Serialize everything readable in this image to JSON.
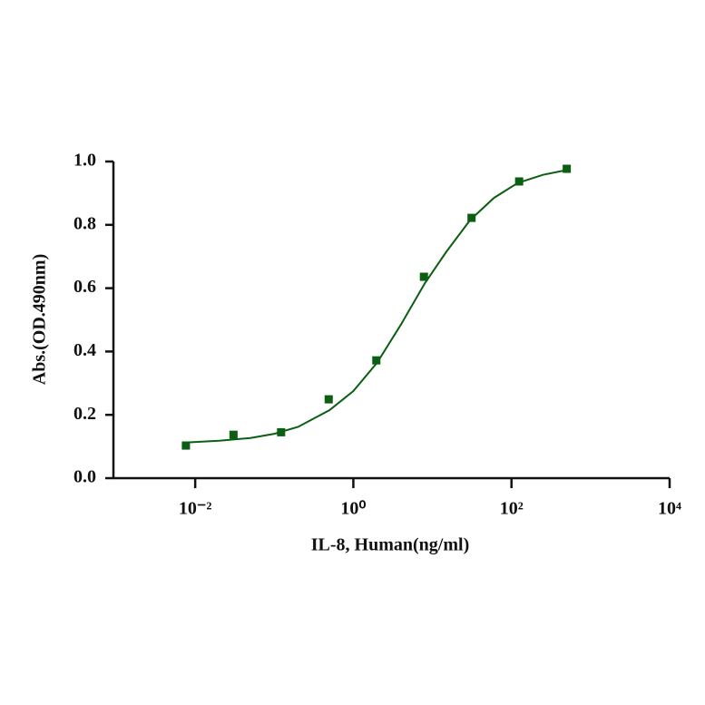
{
  "chart_data": {
    "type": "scatter",
    "xlabel": "IL-8, Human(ng/ml)",
    "ylabel": "Abs.(OD.490nm)",
    "xscale": "log",
    "xlim": [
      0.001,
      10000
    ],
    "xticks": [
      {
        "value": 0.01,
        "label": "10⁻²"
      },
      {
        "value": 1,
        "label": "10⁰"
      },
      {
        "value": 100,
        "label": "10²"
      },
      {
        "value": 10000,
        "label": "10⁴"
      }
    ],
    "ylim": [
      0,
      1
    ],
    "yticks": [
      {
        "value": 0,
        "label": "0.0"
      },
      0.2,
      0.4,
      0.6,
      0.8,
      {
        "value": 1,
        "label": "1.0"
      }
    ],
    "grid": false,
    "series": [
      {
        "color": "#0b5e12",
        "marker": "square",
        "x": [
          0.00763,
          0.0305,
          0.122,
          0.488,
          1.953,
          7.8125,
          31.25,
          125,
          500
        ],
        "values": [
          0.103,
          0.137,
          0.145,
          0.249,
          0.372,
          0.636,
          0.822,
          0.937,
          0.977
        ]
      }
    ],
    "fit_curve": {
      "color": "#0b5e12",
      "x": [
        0.007,
        0.02,
        0.05,
        0.1,
        0.2,
        0.5,
        1,
        2,
        4,
        8,
        15,
        30,
        60,
        120,
        250,
        500
      ],
      "values": [
        0.112,
        0.118,
        0.127,
        0.14,
        0.162,
        0.215,
        0.275,
        0.365,
        0.485,
        0.615,
        0.715,
        0.815,
        0.885,
        0.932,
        0.958,
        0.973
      ]
    }
  }
}
